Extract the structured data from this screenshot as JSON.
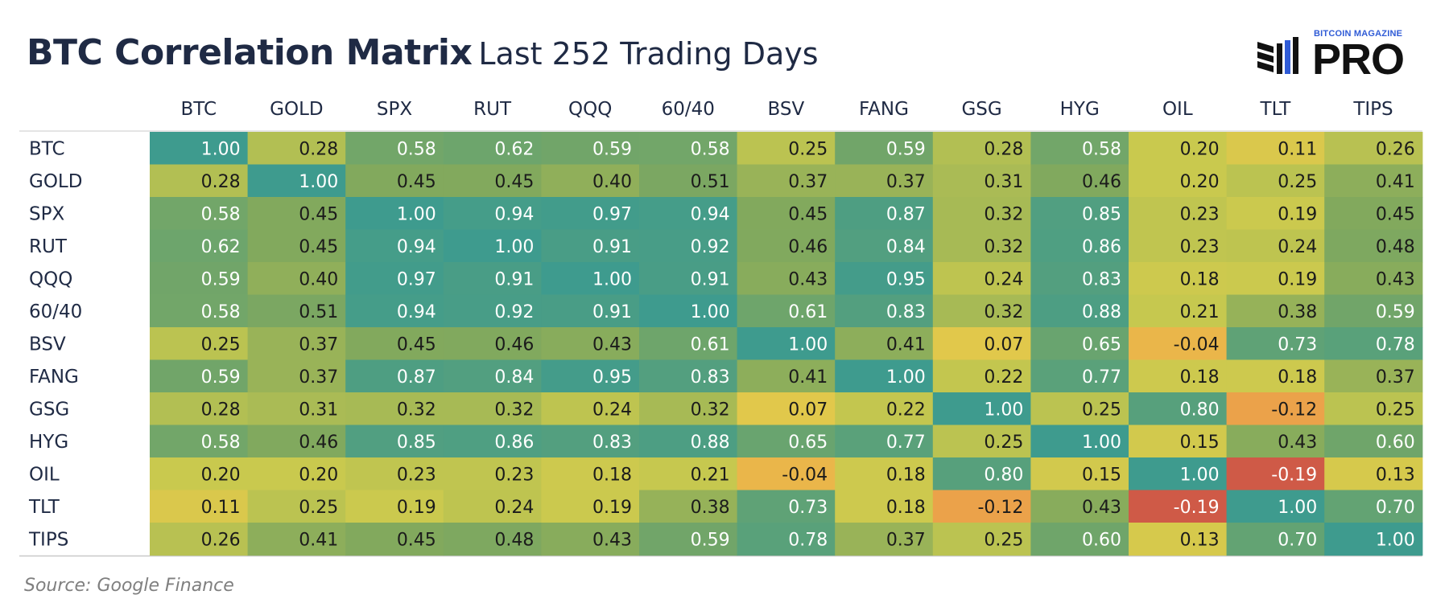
{
  "title": "BTC Correlation Matrix",
  "subtitle": "Last 252 Trading Days",
  "brand": {
    "top": "BITCOIN MAGAZINE",
    "main": "PRO"
  },
  "source": "Source: Google Finance",
  "colors": {
    "text_dark": "#1f2a44",
    "scale_low": "#cf5a47",
    "scale_mid_orange": "#eba24a",
    "scale_yellow": "#e9c84a",
    "scale_green_yellow": "#c9c94e",
    "scale_green": "#82a95d",
    "scale_high": "#3e9b8e"
  },
  "chart_data": {
    "type": "heatmap",
    "title": "BTC Correlation Matrix",
    "subtitle": "Last 252 Trading Days",
    "categories": [
      "BTC",
      "GOLD",
      "SPX",
      "RUT",
      "QQQ",
      "60/40",
      "BSV",
      "FANG",
      "GSG",
      "HYG",
      "OIL",
      "TLT",
      "TIPS"
    ],
    "values": [
      [
        1.0,
        0.28,
        0.58,
        0.62,
        0.59,
        0.58,
        0.25,
        0.59,
        0.28,
        0.58,
        0.2,
        0.11,
        0.26
      ],
      [
        0.28,
        1.0,
        0.45,
        0.45,
        0.4,
        0.51,
        0.37,
        0.37,
        0.31,
        0.46,
        0.2,
        0.25,
        0.41
      ],
      [
        0.58,
        0.45,
        1.0,
        0.94,
        0.97,
        0.94,
        0.45,
        0.87,
        0.32,
        0.85,
        0.23,
        0.19,
        0.45
      ],
      [
        0.62,
        0.45,
        0.94,
        1.0,
        0.91,
        0.92,
        0.46,
        0.84,
        0.32,
        0.86,
        0.23,
        0.24,
        0.48
      ],
      [
        0.59,
        0.4,
        0.97,
        0.91,
        1.0,
        0.91,
        0.43,
        0.95,
        0.24,
        0.83,
        0.18,
        0.19,
        0.43
      ],
      [
        0.58,
        0.51,
        0.94,
        0.92,
        0.91,
        1.0,
        0.61,
        0.83,
        0.32,
        0.88,
        0.21,
        0.38,
        0.59
      ],
      [
        0.25,
        0.37,
        0.45,
        0.46,
        0.43,
        0.61,
        1.0,
        0.41,
        0.07,
        0.65,
        -0.04,
        0.73,
        0.78
      ],
      [
        0.59,
        0.37,
        0.87,
        0.84,
        0.95,
        0.83,
        0.41,
        1.0,
        0.22,
        0.77,
        0.18,
        0.18,
        0.37
      ],
      [
        0.28,
        0.31,
        0.32,
        0.32,
        0.24,
        0.32,
        0.07,
        0.22,
        1.0,
        0.25,
        0.8,
        -0.12,
        0.25
      ],
      [
        0.58,
        0.46,
        0.85,
        0.86,
        0.83,
        0.88,
        0.65,
        0.77,
        0.25,
        1.0,
        0.15,
        0.43,
        0.6
      ],
      [
        0.2,
        0.2,
        0.23,
        0.23,
        0.18,
        0.21,
        -0.04,
        0.18,
        0.8,
        0.15,
        1.0,
        -0.19,
        0.13
      ],
      [
        0.11,
        0.25,
        0.19,
        0.24,
        0.19,
        0.38,
        0.73,
        0.18,
        -0.12,
        0.43,
        -0.19,
        1.0,
        0.7
      ],
      [
        0.26,
        0.41,
        0.45,
        0.48,
        0.43,
        0.59,
        0.78,
        0.37,
        0.25,
        0.6,
        0.13,
        0.7,
        1.0
      ]
    ],
    "value_range": [
      -0.19,
      1.0
    ],
    "color_scale": [
      "#cf5a47",
      "#eba24a",
      "#e9c84a",
      "#c9c94e",
      "#82a95d",
      "#3e9b8e"
    ],
    "legend": "none"
  }
}
